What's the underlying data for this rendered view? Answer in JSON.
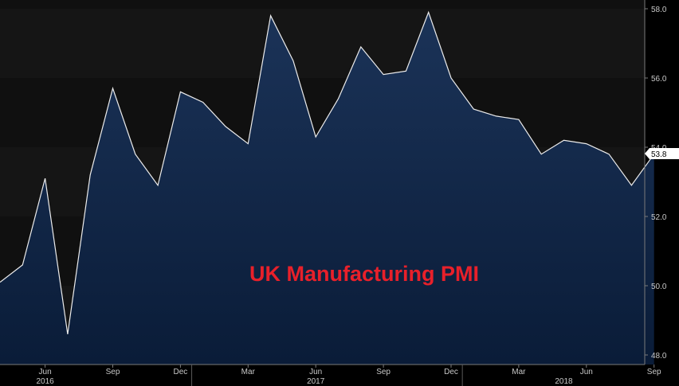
{
  "chart_data": {
    "type": "area",
    "title": "UK Manufacturing PMI",
    "xlabel": "",
    "ylabel": "",
    "months": [
      "2016-04",
      "2016-05",
      "2016-06",
      "2016-07",
      "2016-08",
      "2016-09",
      "2016-10",
      "2016-11",
      "2016-12",
      "2017-01",
      "2017-02",
      "2017-03",
      "2017-04",
      "2017-05",
      "2017-06",
      "2017-07",
      "2017-08",
      "2017-09",
      "2017-10",
      "2017-11",
      "2017-12",
      "2018-01",
      "2018-02",
      "2018-03",
      "2018-04",
      "2018-05",
      "2018-06",
      "2018-07",
      "2018-08",
      "2018-09"
    ],
    "values": [
      50.1,
      50.6,
      53.1,
      48.6,
      53.2,
      55.7,
      53.8,
      52.9,
      55.6,
      55.3,
      54.6,
      54.1,
      57.8,
      56.5,
      54.3,
      55.4,
      56.9,
      56.1,
      56.2,
      57.9,
      56.0,
      55.1,
      54.9,
      54.8,
      53.8,
      54.2,
      54.1,
      53.8,
      52.9,
      53.8
    ],
    "ylim": [
      47.6,
      58.4
    ],
    "yticks": [
      "48.0",
      "50.0",
      "52.0",
      "54.0",
      "56.0",
      "58.0"
    ],
    "xticks": [
      "Jun",
      "Sep",
      "Dec",
      "Mar",
      "Jun",
      "Sep",
      "Dec",
      "Mar",
      "Jun",
      "Sep"
    ],
    "years": [
      "2016",
      "2017",
      "2018"
    ],
    "last_value_label": "53.8",
    "grid": true,
    "legend": "none",
    "colors": {
      "background": "#000000",
      "band_dark": "#101010",
      "band_light": "#151515",
      "area_top": "#1b3358",
      "area_bottom": "#0a1c38",
      "line": "#ececec",
      "title": "#e8202a",
      "tick_text": "#c8c8c8"
    }
  }
}
